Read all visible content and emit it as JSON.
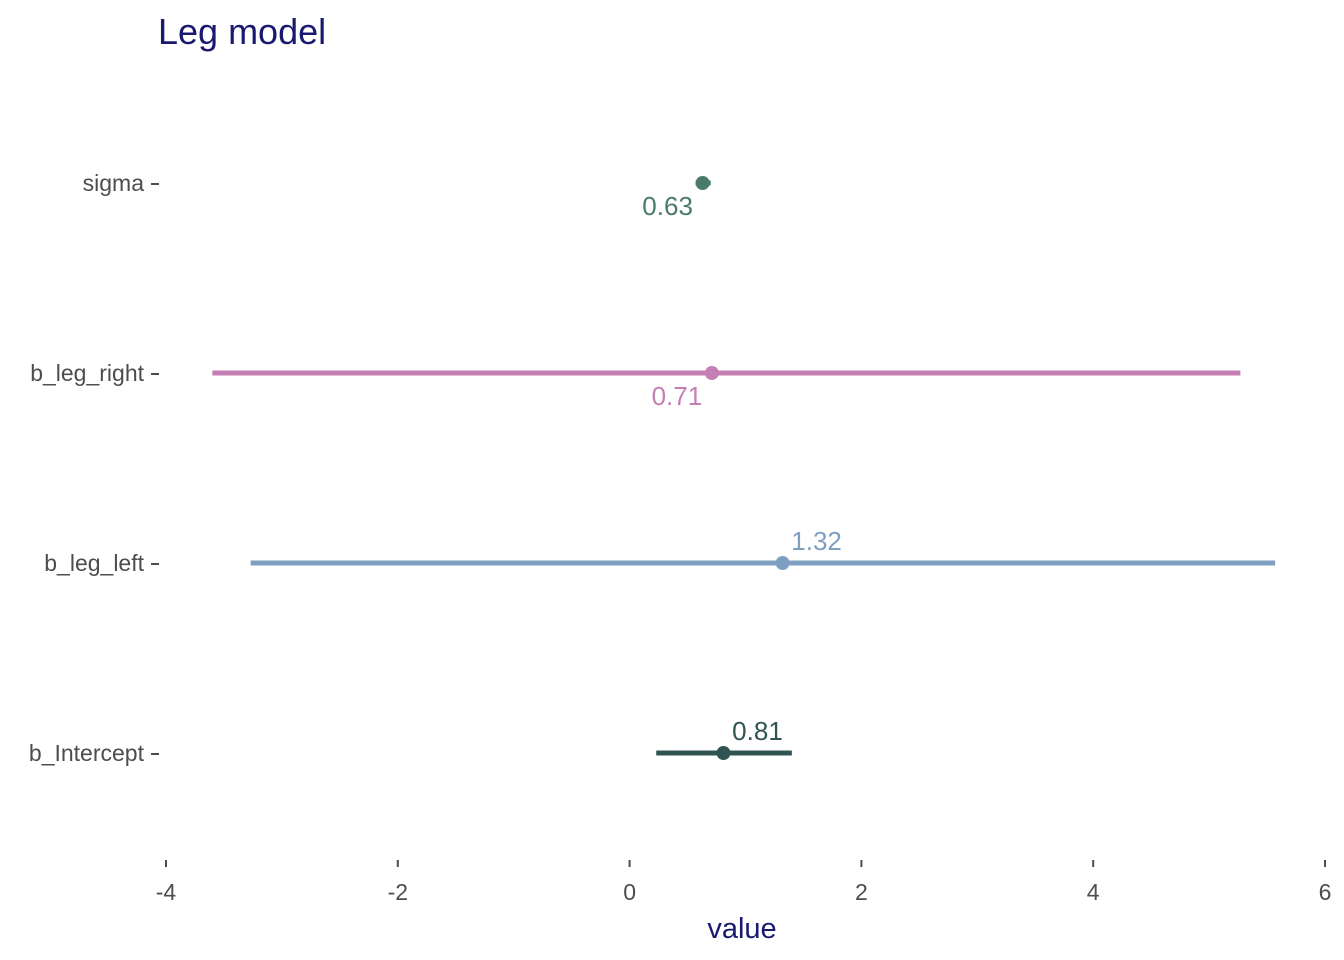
{
  "chart_data": {
    "type": "forest",
    "title": "Leg model",
    "xlabel": "value",
    "ylabel": "",
    "xlim": [
      -4,
      6
    ],
    "xticks": [
      -4,
      -2,
      0,
      2,
      4,
      6
    ],
    "grid": false,
    "series": [
      {
        "parameter": "sigma",
        "estimate": 0.63,
        "low": 0.57,
        "high": 0.7,
        "label": "0.63",
        "label_side": "below",
        "color": "#4a7a6a"
      },
      {
        "parameter": "b_leg_right",
        "estimate": 0.71,
        "low": -3.6,
        "high": 5.27,
        "label": "0.71",
        "label_side": "below",
        "color": "#c67fb5"
      },
      {
        "parameter": "b_leg_left",
        "estimate": 1.32,
        "low": -3.27,
        "high": 5.57,
        "label": "1.32",
        "label_side": "above",
        "color": "#7f9fc2"
      },
      {
        "parameter": "b_Intercept",
        "estimate": 0.81,
        "low": 0.23,
        "high": 1.4,
        "label": "0.81",
        "label_side": "above",
        "color": "#2f5552"
      }
    ]
  }
}
